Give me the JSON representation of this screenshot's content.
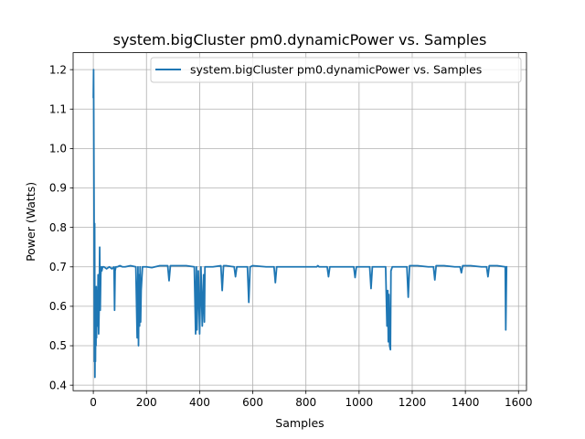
{
  "chart_data": {
    "type": "line",
    "title": "system.bigCluster pm0.dynamicPower vs. Samples",
    "xlabel": "Samples",
    "ylabel": "Power (Watts)",
    "xlim": [
      -76,
      1630
    ],
    "ylim": [
      0.386,
      1.243
    ],
    "xticks": [
      0,
      200,
      400,
      600,
      800,
      1000,
      1200,
      1400,
      1600
    ],
    "yticks": [
      0.4,
      0.5,
      0.6,
      0.7,
      0.8,
      0.9,
      1.0,
      1.1,
      1.2
    ],
    "grid": true,
    "legend_position": "top-right",
    "series": [
      {
        "name": "system.bigCluster pm0.dynamicPower vs. Samples",
        "color": "#1f77b4",
        "x": [
          0,
          1,
          2,
          3,
          4,
          5,
          6,
          7,
          8,
          9,
          10,
          11,
          12,
          14,
          16,
          18,
          20,
          22,
          24,
          26,
          28,
          30,
          32,
          35,
          40,
          50,
          60,
          70,
          78,
          80,
          82,
          85,
          90,
          100,
          110,
          120,
          140,
          160,
          165,
          168,
          170,
          172,
          174,
          176,
          178,
          180,
          185,
          200,
          220,
          250,
          280,
          285,
          290,
          320,
          350,
          380,
          385,
          388,
          390,
          395,
          400,
          405,
          410,
          415,
          418,
          420,
          430,
          450,
          480,
          485,
          490,
          500,
          530,
          535,
          540,
          580,
          585,
          590,
          600,
          650,
          680,
          685,
          690,
          720,
          760,
          800,
          840,
          845,
          850,
          870,
          880,
          885,
          890,
          920,
          960,
          980,
          985,
          990,
          1020,
          1040,
          1045,
          1050,
          1080,
          1100,
          1105,
          1108,
          1110,
          1112,
          1115,
          1118,
          1120,
          1125,
          1130,
          1140,
          1160,
          1180,
          1185,
          1190,
          1220,
          1260,
          1280,
          1285,
          1290,
          1320,
          1360,
          1380,
          1385,
          1390,
          1420,
          1460,
          1480,
          1485,
          1490,
          1520,
          1550,
          1552,
          1555
        ],
        "y": [
          1.13,
          1.2,
          1.0,
          0.8,
          0.46,
          0.81,
          0.42,
          0.6,
          0.46,
          0.58,
          0.5,
          0.65,
          0.52,
          0.64,
          0.55,
          0.68,
          0.53,
          0.6,
          0.75,
          0.59,
          0.68,
          0.7,
          0.69,
          0.7,
          0.7,
          0.695,
          0.7,
          0.695,
          0.7,
          0.59,
          0.69,
          0.7,
          0.7,
          0.703,
          0.7,
          0.7,
          0.703,
          0.7,
          0.52,
          0.7,
          0.5,
          0.68,
          0.55,
          0.7,
          0.56,
          0.64,
          0.7,
          0.7,
          0.698,
          0.703,
          0.703,
          0.665,
          0.703,
          0.703,
          0.703,
          0.7,
          0.53,
          0.7,
          0.54,
          0.69,
          0.53,
          0.7,
          0.55,
          0.68,
          0.56,
          0.7,
          0.7,
          0.7,
          0.703,
          0.64,
          0.703,
          0.703,
          0.7,
          0.675,
          0.7,
          0.7,
          0.61,
          0.7,
          0.703,
          0.7,
          0.7,
          0.66,
          0.7,
          0.7,
          0.7,
          0.7,
          0.7,
          0.703,
          0.7,
          0.7,
          0.7,
          0.675,
          0.7,
          0.7,
          0.7,
          0.7,
          0.673,
          0.7,
          0.7,
          0.7,
          0.645,
          0.7,
          0.7,
          0.7,
          0.55,
          0.64,
          0.51,
          0.63,
          0.5,
          0.49,
          0.69,
          0.7,
          0.7,
          0.7,
          0.7,
          0.7,
          0.623,
          0.703,
          0.703,
          0.7,
          0.7,
          0.667,
          0.703,
          0.703,
          0.7,
          0.7,
          0.685,
          0.703,
          0.703,
          0.7,
          0.7,
          0.675,
          0.703,
          0.703,
          0.7,
          0.54,
          0.7
        ]
      }
    ]
  }
}
